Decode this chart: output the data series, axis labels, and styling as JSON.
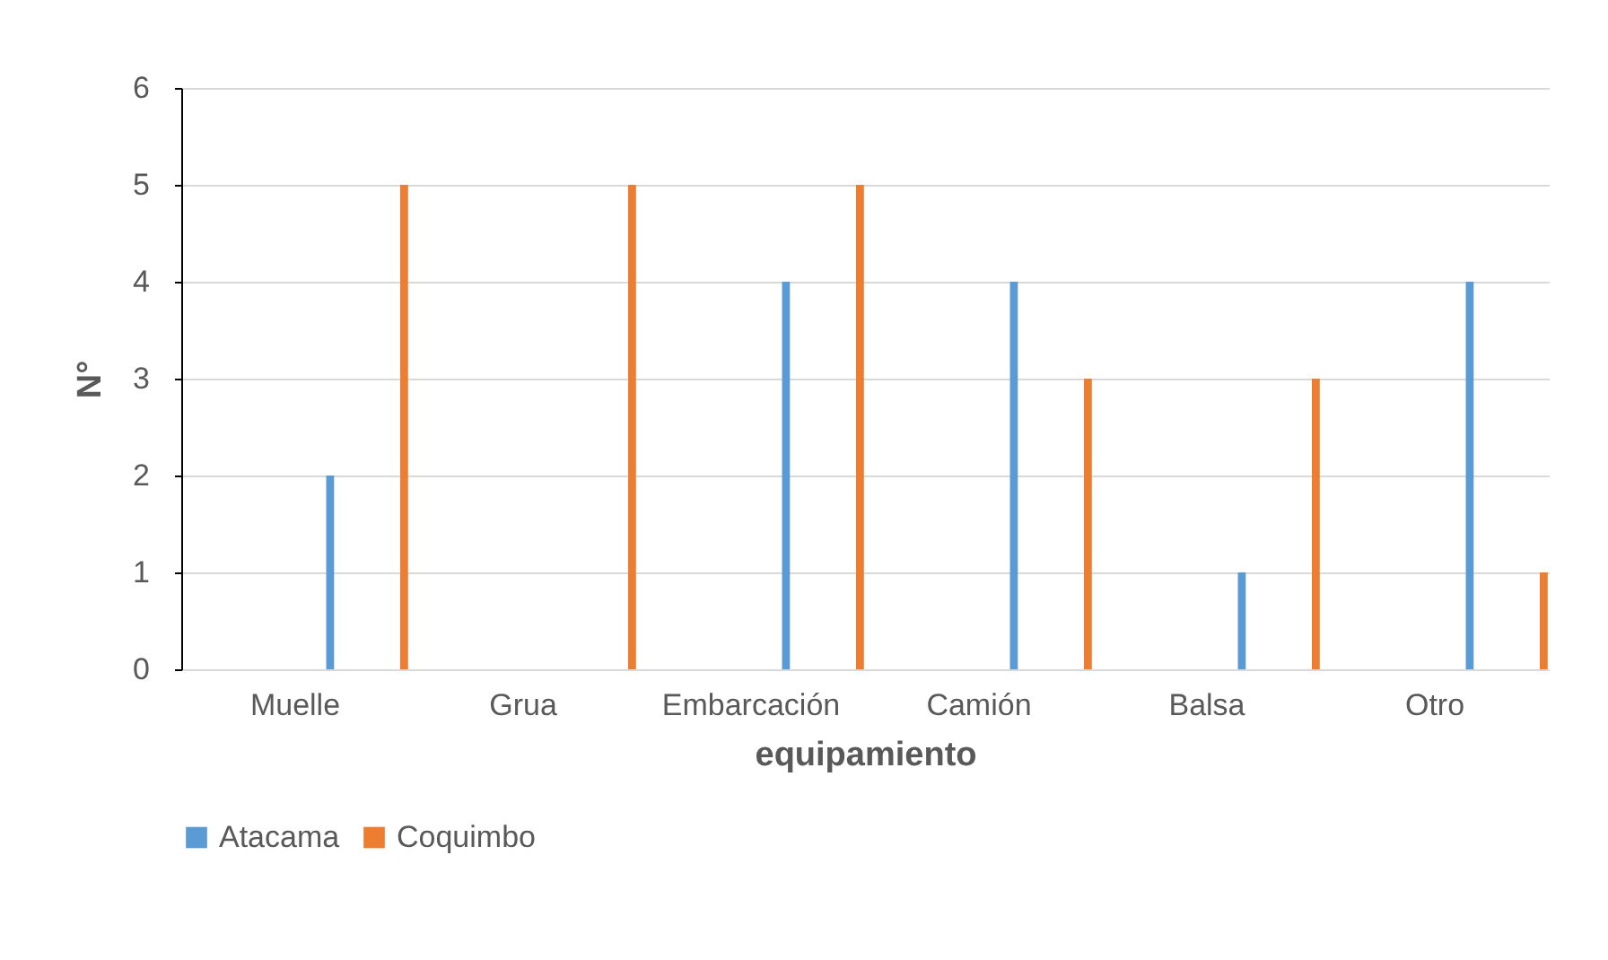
{
  "chart_data": {
    "type": "bar",
    "xlabel": "equipamiento",
    "ylabel": "N°",
    "categories": [
      "Muelle",
      "Grua",
      "Embarcación",
      "Camión",
      "Balsa",
      "Otro"
    ],
    "series": [
      {
        "name": "Atacama",
        "color": "#5b9bd5",
        "values": [
          2,
          0,
          4,
          4,
          1,
          4
        ]
      },
      {
        "name": "Coquimbo",
        "color": "#ed7d31",
        "values": [
          5,
          5,
          5,
          3,
          3,
          1
        ]
      }
    ],
    "ylim": [
      0,
      6
    ],
    "yticks": [
      0,
      1,
      2,
      3,
      4,
      5,
      6
    ],
    "grid": "y",
    "legend": "bottom"
  }
}
